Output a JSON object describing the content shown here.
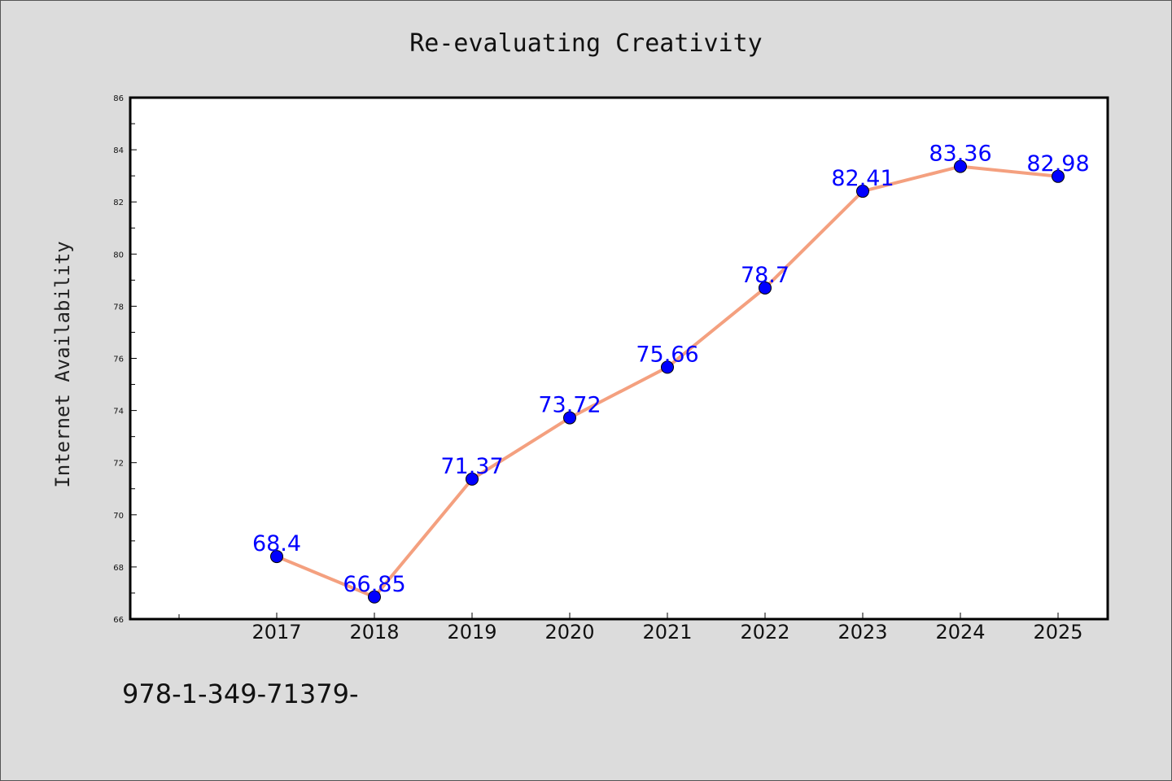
{
  "chart_data": {
    "type": "line",
    "title": "Re-evaluating Creativity",
    "xlabel": "",
    "ylabel": "Internet Availability",
    "categories": [
      "2017",
      "2018",
      "2019",
      "2020",
      "2021",
      "2022",
      "2023",
      "2024",
      "2025"
    ],
    "series": [
      {
        "values": [
          68.4,
          66.85,
          71.37,
          73.72,
          75.66,
          78.7,
          82.41,
          83.36,
          82.98
        ],
        "labels": [
          "68.4",
          "66.85",
          "71.37",
          "73.72",
          "75.66",
          "78.7",
          "82.41",
          "83.36",
          "82.98"
        ],
        "line_color": "#f4a07f",
        "marker_color": "#0000ff"
      }
    ],
    "ylim": [
      66,
      86
    ],
    "yticks": [
      "66",
      "68",
      "70",
      "72",
      "74",
      "76",
      "78",
      "80",
      "82",
      "84",
      "86"
    ],
    "grid": false,
    "legend": "none"
  },
  "footer_text": "978-1-349-71379-",
  "colors": {
    "background": "#dcdcdc",
    "plot_area": "#ffffff",
    "line": "#f4a07f",
    "marker": "#0000ff",
    "label": "#0000ff"
  }
}
